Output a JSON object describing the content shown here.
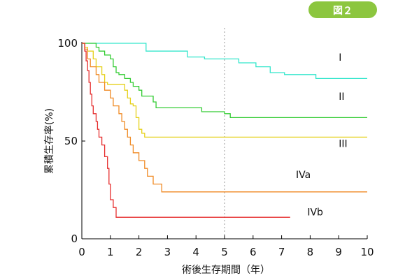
{
  "badge": {
    "text": "図２",
    "color": "#8cc63f"
  },
  "chart_data": {
    "type": "line",
    "step": true,
    "xlabel": "術後生存期間（年）",
    "ylabel": "累積生存率(%)",
    "xlim": [
      0,
      10
    ],
    "ylim": [
      0,
      100
    ],
    "xticks": [
      0,
      1,
      2,
      3,
      4,
      5,
      6,
      7,
      8,
      9,
      10
    ],
    "yticks": [
      0,
      50,
      100
    ],
    "reference_line_x": 5,
    "grid": false,
    "series": [
      {
        "name": "I",
        "color": "#33e6cc",
        "points": [
          [
            0,
            100
          ],
          [
            2.25,
            100
          ],
          [
            2.25,
            96
          ],
          [
            3.7,
            96
          ],
          [
            3.7,
            93
          ],
          [
            4.3,
            93
          ],
          [
            4.3,
            92
          ],
          [
            5.5,
            92
          ],
          [
            5.5,
            90
          ],
          [
            6.1,
            90
          ],
          [
            6.1,
            88
          ],
          [
            6.6,
            88
          ],
          [
            6.6,
            85
          ],
          [
            7.1,
            85
          ],
          [
            7.1,
            84
          ],
          [
            8.2,
            84
          ],
          [
            8.2,
            82
          ],
          [
            10,
            82
          ]
        ],
        "label_at": [
          9.0,
          91
        ]
      },
      {
        "name": "II",
        "color": "#33cc33",
        "points": [
          [
            0,
            100
          ],
          [
            0.5,
            100
          ],
          [
            0.5,
            98
          ],
          [
            0.6,
            98
          ],
          [
            0.6,
            96
          ],
          [
            0.8,
            96
          ],
          [
            0.8,
            94
          ],
          [
            1.0,
            94
          ],
          [
            1.0,
            92
          ],
          [
            1.1,
            92
          ],
          [
            1.1,
            88
          ],
          [
            1.2,
            88
          ],
          [
            1.2,
            85
          ],
          [
            1.3,
            85
          ],
          [
            1.3,
            84
          ],
          [
            1.5,
            84
          ],
          [
            1.5,
            82
          ],
          [
            1.7,
            82
          ],
          [
            1.7,
            80
          ],
          [
            1.8,
            80
          ],
          [
            1.8,
            78
          ],
          [
            2.0,
            78
          ],
          [
            2.0,
            76
          ],
          [
            2.1,
            76
          ],
          [
            2.1,
            73
          ],
          [
            2.5,
            73
          ],
          [
            2.5,
            70
          ],
          [
            2.6,
            70
          ],
          [
            2.6,
            67
          ],
          [
            4.2,
            67
          ],
          [
            4.2,
            65
          ],
          [
            5.0,
            65
          ],
          [
            5.0,
            64
          ],
          [
            5.2,
            64
          ],
          [
            5.2,
            62
          ],
          [
            10,
            62
          ]
        ],
        "label_at": [
          9.0,
          71
        ]
      },
      {
        "name": "III",
        "color": "#e6d11a",
        "points": [
          [
            0,
            100
          ],
          [
            0.1,
            100
          ],
          [
            0.1,
            98
          ],
          [
            0.2,
            98
          ],
          [
            0.2,
            96
          ],
          [
            0.4,
            96
          ],
          [
            0.4,
            92
          ],
          [
            0.5,
            92
          ],
          [
            0.5,
            88
          ],
          [
            0.7,
            88
          ],
          [
            0.7,
            84
          ],
          [
            0.8,
            84
          ],
          [
            0.8,
            80
          ],
          [
            0.9,
            80
          ],
          [
            0.9,
            79
          ],
          [
            1.5,
            79
          ],
          [
            1.5,
            76
          ],
          [
            1.6,
            76
          ],
          [
            1.6,
            72
          ],
          [
            1.7,
            72
          ],
          [
            1.7,
            69
          ],
          [
            1.8,
            69
          ],
          [
            1.8,
            68
          ],
          [
            1.9,
            68
          ],
          [
            1.9,
            62
          ],
          [
            2.0,
            62
          ],
          [
            2.0,
            56
          ],
          [
            2.1,
            56
          ],
          [
            2.1,
            54
          ],
          [
            2.2,
            54
          ],
          [
            2.2,
            52
          ],
          [
            10,
            52
          ]
        ],
        "label_at": [
          9.0,
          47
        ]
      },
      {
        "name": "IVa",
        "color": "#f08a24",
        "points": [
          [
            0,
            100
          ],
          [
            0.1,
            100
          ],
          [
            0.1,
            97
          ],
          [
            0.2,
            97
          ],
          [
            0.2,
            92
          ],
          [
            0.3,
            92
          ],
          [
            0.3,
            88
          ],
          [
            0.5,
            88
          ],
          [
            0.5,
            84
          ],
          [
            0.6,
            84
          ],
          [
            0.6,
            80
          ],
          [
            0.8,
            80
          ],
          [
            0.8,
            76
          ],
          [
            1.0,
            76
          ],
          [
            1.0,
            72
          ],
          [
            1.1,
            72
          ],
          [
            1.1,
            68
          ],
          [
            1.3,
            68
          ],
          [
            1.3,
            64
          ],
          [
            1.4,
            64
          ],
          [
            1.4,
            60
          ],
          [
            1.5,
            60
          ],
          [
            1.5,
            56
          ],
          [
            1.6,
            56
          ],
          [
            1.6,
            52
          ],
          [
            1.7,
            52
          ],
          [
            1.7,
            48
          ],
          [
            1.8,
            48
          ],
          [
            1.8,
            44
          ],
          [
            2.0,
            44
          ],
          [
            2.0,
            40
          ],
          [
            2.2,
            40
          ],
          [
            2.2,
            36
          ],
          [
            2.3,
            36
          ],
          [
            2.3,
            32
          ],
          [
            2.5,
            32
          ],
          [
            2.5,
            28
          ],
          [
            2.8,
            28
          ],
          [
            2.8,
            24
          ],
          [
            10,
            24
          ]
        ],
        "label_at": [
          7.5,
          31
        ]
      },
      {
        "name": "IVb",
        "color": "#e62e2e",
        "points": [
          [
            0,
            100
          ],
          [
            0.1,
            100
          ],
          [
            0.1,
            96
          ],
          [
            0.15,
            96
          ],
          [
            0.15,
            91
          ],
          [
            0.2,
            91
          ],
          [
            0.2,
            86
          ],
          [
            0.25,
            86
          ],
          [
            0.25,
            80
          ],
          [
            0.3,
            80
          ],
          [
            0.3,
            74
          ],
          [
            0.35,
            74
          ],
          [
            0.35,
            68
          ],
          [
            0.4,
            68
          ],
          [
            0.4,
            64
          ],
          [
            0.5,
            64
          ],
          [
            0.5,
            60
          ],
          [
            0.55,
            60
          ],
          [
            0.55,
            56
          ],
          [
            0.6,
            56
          ],
          [
            0.6,
            52
          ],
          [
            0.7,
            52
          ],
          [
            0.7,
            48
          ],
          [
            0.8,
            48
          ],
          [
            0.8,
            42
          ],
          [
            0.9,
            42
          ],
          [
            0.9,
            36
          ],
          [
            0.95,
            36
          ],
          [
            0.95,
            28
          ],
          [
            1.0,
            28
          ],
          [
            1.0,
            20
          ],
          [
            1.1,
            20
          ],
          [
            1.1,
            16
          ],
          [
            1.2,
            16
          ],
          [
            1.2,
            11
          ],
          [
            7.3,
            11
          ]
        ],
        "label_at": [
          7.9,
          12
        ]
      }
    ]
  }
}
